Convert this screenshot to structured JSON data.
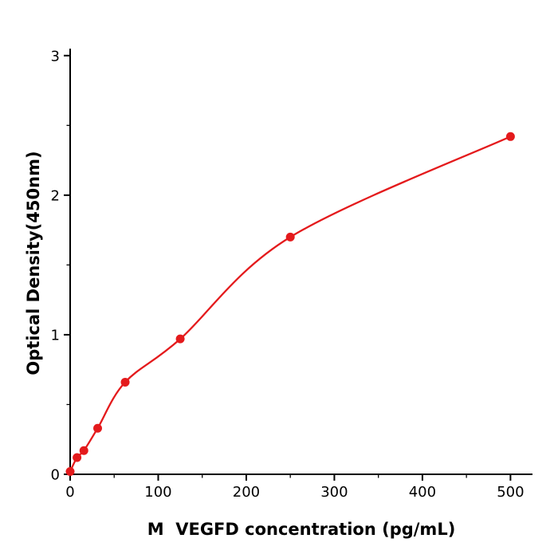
{
  "chart_data": {
    "type": "scatter",
    "title": "",
    "xlabel": "M  VEGFD concentration (pg/mL)",
    "ylabel": "Optical Density(450nm)",
    "x": [
      0,
      7.8,
      15.6,
      31.25,
      62.5,
      125,
      250,
      500
    ],
    "y": [
      0.02,
      0.12,
      0.17,
      0.33,
      0.66,
      0.97,
      1.7,
      2.42
    ],
    "curve": "smooth saturating fit line through points, from x=0 to x=500",
    "xlim": [
      0,
      525
    ],
    "ylim": [
      0,
      3.05
    ],
    "xticks": [
      0,
      100,
      200,
      300,
      400,
      500
    ],
    "yticks": [
      0,
      1,
      2,
      3
    ],
    "xticks_minor": [
      50,
      150,
      250,
      350,
      450
    ],
    "yticks_minor": [
      0.5,
      1.5,
      2.5
    ],
    "point_color": "#e41a1c",
    "line_color": "#e41a1c",
    "axis_color": "#000000",
    "grid": false,
    "legend": null
  }
}
